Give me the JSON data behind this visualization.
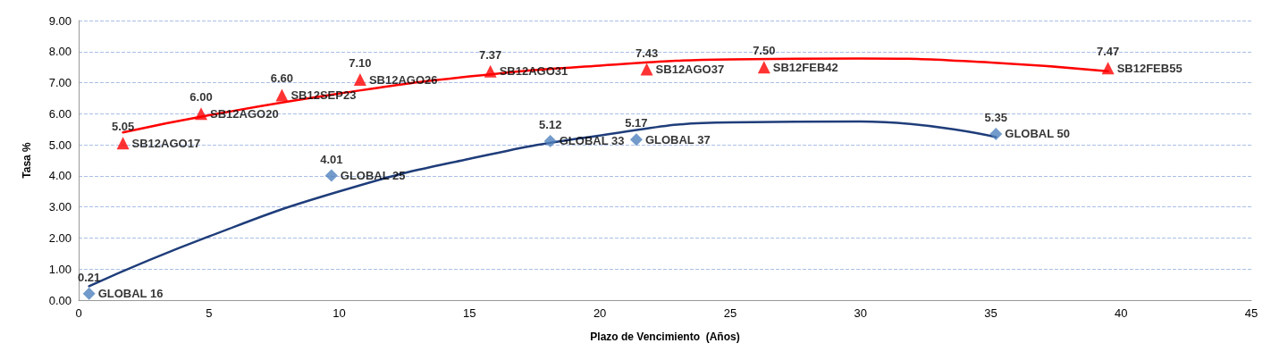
{
  "chart_data": {
    "type": "scatter",
    "xlabel": "Plazo de Vencimiento  (Años)",
    "ylabel": "Tasa %",
    "xlim": [
      0,
      45
    ],
    "xticks": [
      0,
      5,
      10,
      15,
      20,
      25,
      30,
      35,
      40,
      45
    ],
    "ylim": [
      0,
      9
    ],
    "yticks": [
      {
        "value": 0,
        "label": "0.00"
      },
      {
        "value": 1,
        "label": "1.00"
      },
      {
        "value": 2,
        "label": "2.00"
      },
      {
        "value": 3,
        "label": "3.00"
      },
      {
        "value": 4,
        "label": "4.00"
      },
      {
        "value": 5,
        "label": "5.00"
      },
      {
        "value": 6,
        "label": "6.00"
      },
      {
        "value": 7,
        "label": "7.00"
      },
      {
        "value": 8,
        "label": "8.00"
      },
      {
        "value": 9,
        "label": "9.00"
      }
    ],
    "grid": "y",
    "series": [
      {
        "color": "#ff0000",
        "marker": "triangle",
        "x": [
          1.7,
          4.7,
          7.8,
          10.8,
          15.8,
          21.8,
          26.3,
          39.5
        ],
        "values": [
          5.05,
          6.0,
          6.6,
          7.1,
          7.37,
          7.43,
          7.5,
          7.47
        ],
        "value_labels": [
          "5.05",
          "6.00",
          "6.60",
          "7.10",
          "7.37",
          "7.43",
          "7.50",
          "7.47"
        ]
      },
      {
        "color": "#4f81bd",
        "marker": "diamond",
        "x": [
          0.4,
          9.7,
          18.1,
          21.4,
          35.2
        ],
        "values": [
          0.21,
          4.01,
          5.12,
          5.17,
          5.35
        ],
        "value_labels": [
          "0.21",
          "4.01",
          "5.12",
          "5.17",
          "5.35"
        ]
      },
      {
        "type": "line",
        "color": "#ff0000",
        "marker": "none",
        "x": [
          1.7,
          5,
          10,
          15,
          20,
          25,
          30,
          35,
          39.5
        ],
        "values": [
          5.4,
          5.95,
          6.65,
          7.2,
          7.55,
          7.75,
          7.78,
          7.65,
          7.37
        ]
      },
      {
        "type": "line",
        "color": "#1f3d7a",
        "marker": "none",
        "x": [
          0.4,
          5,
          10,
          15,
          20,
          25,
          30,
          35.2
        ],
        "values": [
          0.45,
          2.05,
          3.5,
          4.55,
          5.3,
          5.72,
          5.75,
          5.25
        ]
      }
    ],
    "annotations": [
      {
        "text": "SB12AGO17",
        "x": 1.7,
        "y": 5.05
      },
      {
        "text": "SB12AGO20",
        "x": 4.7,
        "y": 6.0
      },
      {
        "text": "SB12SEP23",
        "x": 7.8,
        "y": 6.6
      },
      {
        "text": "SB12AGO26",
        "x": 10.8,
        "y": 7.1
      },
      {
        "text": "SB12AGO31",
        "x": 15.8,
        "y": 7.37
      },
      {
        "text": "SB12AGO37",
        "x": 21.8,
        "y": 7.43
      },
      {
        "text": "SB12FEB42",
        "x": 26.3,
        "y": 7.5
      },
      {
        "text": "SB12FEB55",
        "x": 39.5,
        "y": 7.47
      },
      {
        "text": "GLOBAL 16",
        "x": 0.4,
        "y": 0.21
      },
      {
        "text": "GLOBAL 25",
        "x": 9.7,
        "y": 4.01
      },
      {
        "text": "GLOBAL 33",
        "x": 18.1,
        "y": 5.12
      },
      {
        "text": "GLOBAL 37",
        "x": 21.4,
        "y": 5.17
      },
      {
        "text": "GLOBAL 50",
        "x": 35.2,
        "y": 5.35
      }
    ]
  }
}
